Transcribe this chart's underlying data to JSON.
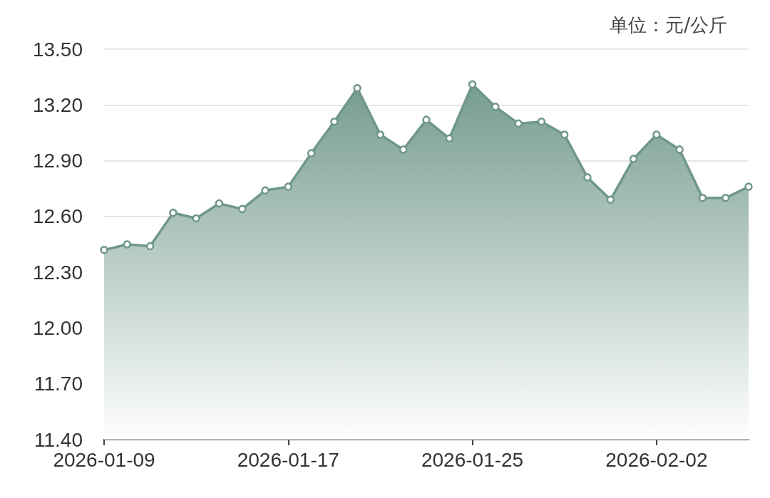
{
  "chart_data": {
    "type": "area",
    "x": [
      "2026-01-09",
      "2026-01-10",
      "2026-01-11",
      "2026-01-12",
      "2026-01-13",
      "2026-01-14",
      "2026-01-15",
      "2026-01-16",
      "2026-01-17",
      "2026-01-18",
      "2026-01-19",
      "2026-01-20",
      "2026-01-21",
      "2026-01-22",
      "2026-01-23",
      "2026-01-24",
      "2026-01-25",
      "2026-01-26",
      "2026-01-27",
      "2026-01-28",
      "2026-01-29",
      "2026-01-30",
      "2026-01-31",
      "2026-02-01",
      "2026-02-02",
      "2026-02-03",
      "2026-02-04",
      "2026-02-05",
      "2026-02-06"
    ],
    "series": [
      {
        "color": "#6f978a",
        "values": [
          12.42,
          12.45,
          12.44,
          12.62,
          12.59,
          12.67,
          12.64,
          12.74,
          12.76,
          12.94,
          13.11,
          13.29,
          13.04,
          12.96,
          13.12,
          13.02,
          13.31,
          13.19,
          13.1,
          13.11,
          13.04,
          12.81,
          12.69,
          12.91,
          13.04,
          12.96,
          12.7,
          12.7,
          12.76
        ]
      }
    ],
    "xlim": [
      "2026-01-09",
      "2026-02-06"
    ],
    "xticks": [
      "2026-01-09",
      "2026-01-17",
      "2026-01-25",
      "2026-02-02"
    ],
    "ylim": [
      11.4,
      13.5
    ],
    "yticks": [
      {
        "value": 11.4,
        "label": "11.40"
      },
      {
        "value": 11.7,
        "label": "11.70"
      },
      {
        "value": 12.0,
        "label": "12.00"
      },
      {
        "value": 12.3,
        "label": "12.30"
      },
      {
        "value": 12.6,
        "label": "12.60"
      },
      {
        "value": 12.9,
        "label": "12.90"
      },
      {
        "value": 13.2,
        "label": "13.20"
      },
      {
        "value": 13.5,
        "label": "13.50"
      }
    ],
    "grid": "y",
    "marker": "circle",
    "line_style": "solid",
    "annotations": [
      "单位：元/公斤"
    ]
  }
}
